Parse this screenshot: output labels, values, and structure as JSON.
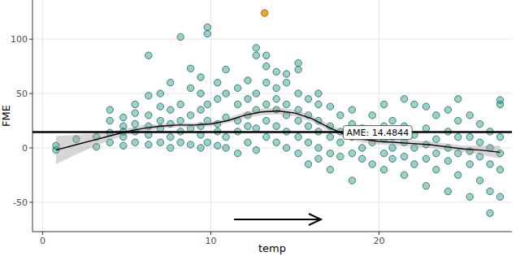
{
  "chart_data": {
    "type": "scatter",
    "x_label": "temp",
    "y_label": "FME",
    "xlim": [
      -0.6,
      27.9
    ],
    "ylim": [
      -77,
      136
    ],
    "xticks": [
      0,
      10,
      20
    ],
    "yticks": [
      -50,
      0,
      50,
      100
    ],
    "grid": true,
    "annotation": {
      "text": "AME: 14.4844",
      "value": 14.4844
    },
    "series": [
      {
        "type": "scatter",
        "color": "#1e9a8a",
        "marker": "circle",
        "x": [
          0.8,
          0.8,
          2.0,
          3.2,
          3.2,
          4.0,
          4.0,
          4.0,
          4.0,
          4.8,
          4.8,
          4.8,
          4.8,
          4.8,
          5.5,
          5.5,
          5.5,
          5.5,
          5.5,
          6.3,
          6.3,
          6.3,
          6.3,
          6.3,
          6.3,
          7.0,
          7.0,
          7.0,
          7.0,
          7.0,
          7.6,
          7.6,
          7.6,
          7.6,
          7.6,
          8.2,
          8.2,
          8.2,
          8.2,
          8.2,
          8.8,
          8.8,
          8.8,
          8.8,
          8.8,
          9.4,
          9.4,
          9.4,
          9.4,
          9.4,
          9.4,
          9.8,
          9.8,
          9.8,
          9.8,
          9.8,
          10.4,
          10.4,
          10.4,
          10.4,
          10.4,
          10.9,
          10.9,
          10.9,
          10.9,
          10.9,
          11.6,
          11.6,
          11.6,
          11.6,
          11.6,
          12.2,
          12.2,
          12.2,
          12.2,
          12.2,
          12.7,
          12.7,
          12.7,
          12.7,
          12.7,
          12.7,
          13.3,
          13.3,
          13.3,
          13.3,
          13.3,
          13.3,
          13.9,
          13.9,
          13.9,
          13.9,
          13.9,
          13.9,
          14.5,
          14.5,
          14.5,
          14.5,
          14.5,
          14.5,
          15.2,
          15.2,
          15.2,
          15.2,
          15.2,
          15.2,
          15.2,
          15.8,
          15.8,
          15.8,
          15.8,
          15.8,
          16.4,
          16.4,
          16.4,
          16.4,
          16.4,
          16.4,
          17.1,
          17.1,
          17.1,
          17.1,
          17.1,
          17.7,
          17.7,
          17.7,
          17.7,
          18.4,
          18.4,
          18.4,
          18.4,
          18.4,
          19.0,
          19.0,
          19.0,
          19.0,
          19.6,
          19.6,
          19.6,
          19.6,
          20.3,
          20.3,
          20.3,
          20.3,
          20.3,
          20.8,
          20.8,
          20.8,
          20.8,
          21.5,
          21.5,
          21.5,
          21.5,
          21.5,
          22.1,
          22.1,
          22.1,
          22.1,
          22.8,
          22.8,
          22.8,
          22.8,
          22.8,
          23.4,
          23.4,
          23.4,
          23.4,
          24.1,
          24.1,
          24.1,
          24.1,
          24.1,
          24.7,
          24.7,
          24.7,
          24.7,
          24.7,
          25.4,
          25.4,
          25.4,
          25.4,
          25.4,
          26.0,
          26.0,
          26.0,
          26.0,
          26.6,
          26.6,
          26.6,
          26.6,
          26.6,
          27.2,
          27.2,
          27.2,
          27.2,
          27.2,
          27.2
        ],
        "values": [
          -2,
          2,
          8,
          1,
          10,
          14,
          25,
          35,
          5,
          2,
          10,
          20,
          28,
          15,
          5,
          15,
          22,
          32,
          40,
          3,
          12,
          20,
          30,
          48,
          85,
          5,
          18,
          25,
          38,
          50,
          0,
          10,
          22,
          35,
          60,
          5,
          15,
          25,
          40,
          102,
          3,
          18,
          30,
          55,
          73,
          0,
          12,
          20,
          35,
          50,
          65,
          5,
          25,
          40,
          105,
          111,
          2,
          15,
          22,
          45,
          60,
          0,
          10,
          28,
          50,
          72,
          -5,
          15,
          25,
          40,
          55,
          5,
          20,
          30,
          45,
          62,
          -2,
          18,
          35,
          50,
          85,
          92,
          10,
          25,
          40,
          60,
          75,
          85,
          5,
          20,
          35,
          45,
          55,
          70,
          0,
          15,
          30,
          40,
          60,
          68,
          -5,
          10,
          25,
          35,
          50,
          72,
          78,
          -15,
          5,
          20,
          30,
          45,
          -10,
          0,
          15,
          25,
          40,
          50,
          -20,
          -5,
          10,
          20,
          38,
          -8,
          5,
          15,
          30,
          -30,
          -5,
          10,
          22,
          35,
          -10,
          0,
          12,
          18,
          -15,
          5,
          15,
          30,
          -20,
          -5,
          8,
          20,
          40,
          -10,
          0,
          10,
          25,
          -25,
          -8,
          5,
          20,
          45,
          -15,
          0,
          12,
          40,
          -35,
          -10,
          3,
          18,
          38,
          -20,
          -5,
          8,
          30,
          -40,
          -12,
          0,
          15,
          35,
          -25,
          -5,
          10,
          25,
          45,
          -45,
          -15,
          -3,
          10,
          30,
          -30,
          -8,
          5,
          22,
          -60,
          -40,
          -15,
          0,
          15,
          -45,
          -20,
          -5,
          10,
          40,
          44
        ]
      },
      {
        "type": "scatter",
        "color": "#f5a623",
        "marker": "circle",
        "x": [
          13.2
        ],
        "values": [
          124
        ]
      },
      {
        "type": "line",
        "color": "#000000",
        "line_style": "solid",
        "x": [
          0.8,
          2,
          3,
          4,
          5,
          6,
          7,
          8,
          9,
          10,
          11,
          12,
          13,
          14,
          15,
          16,
          17,
          18,
          19,
          20,
          21,
          22,
          23,
          24,
          25,
          26,
          27.2
        ],
        "values": [
          -2,
          3,
          7,
          11,
          15,
          18,
          20,
          21,
          21,
          22,
          25,
          30,
          33,
          34,
          32,
          27,
          19,
          12,
          8,
          6,
          5,
          4,
          3,
          1,
          -1,
          -2,
          -4
        ],
        "lower": [
          -15,
          -6,
          1,
          7,
          12,
          15,
          18,
          19,
          19,
          20,
          23,
          27,
          30,
          31,
          29,
          24,
          16,
          9,
          5,
          3,
          2,
          1,
          0,
          -2,
          -4,
          -6,
          -10
        ],
        "upper": [
          11,
          12,
          13,
          15,
          18,
          21,
          22,
          23,
          23,
          24,
          27,
          33,
          36,
          37,
          35,
          30,
          22,
          15,
          11,
          9,
          8,
          7,
          6,
          4,
          2,
          2,
          2
        ]
      }
    ]
  }
}
